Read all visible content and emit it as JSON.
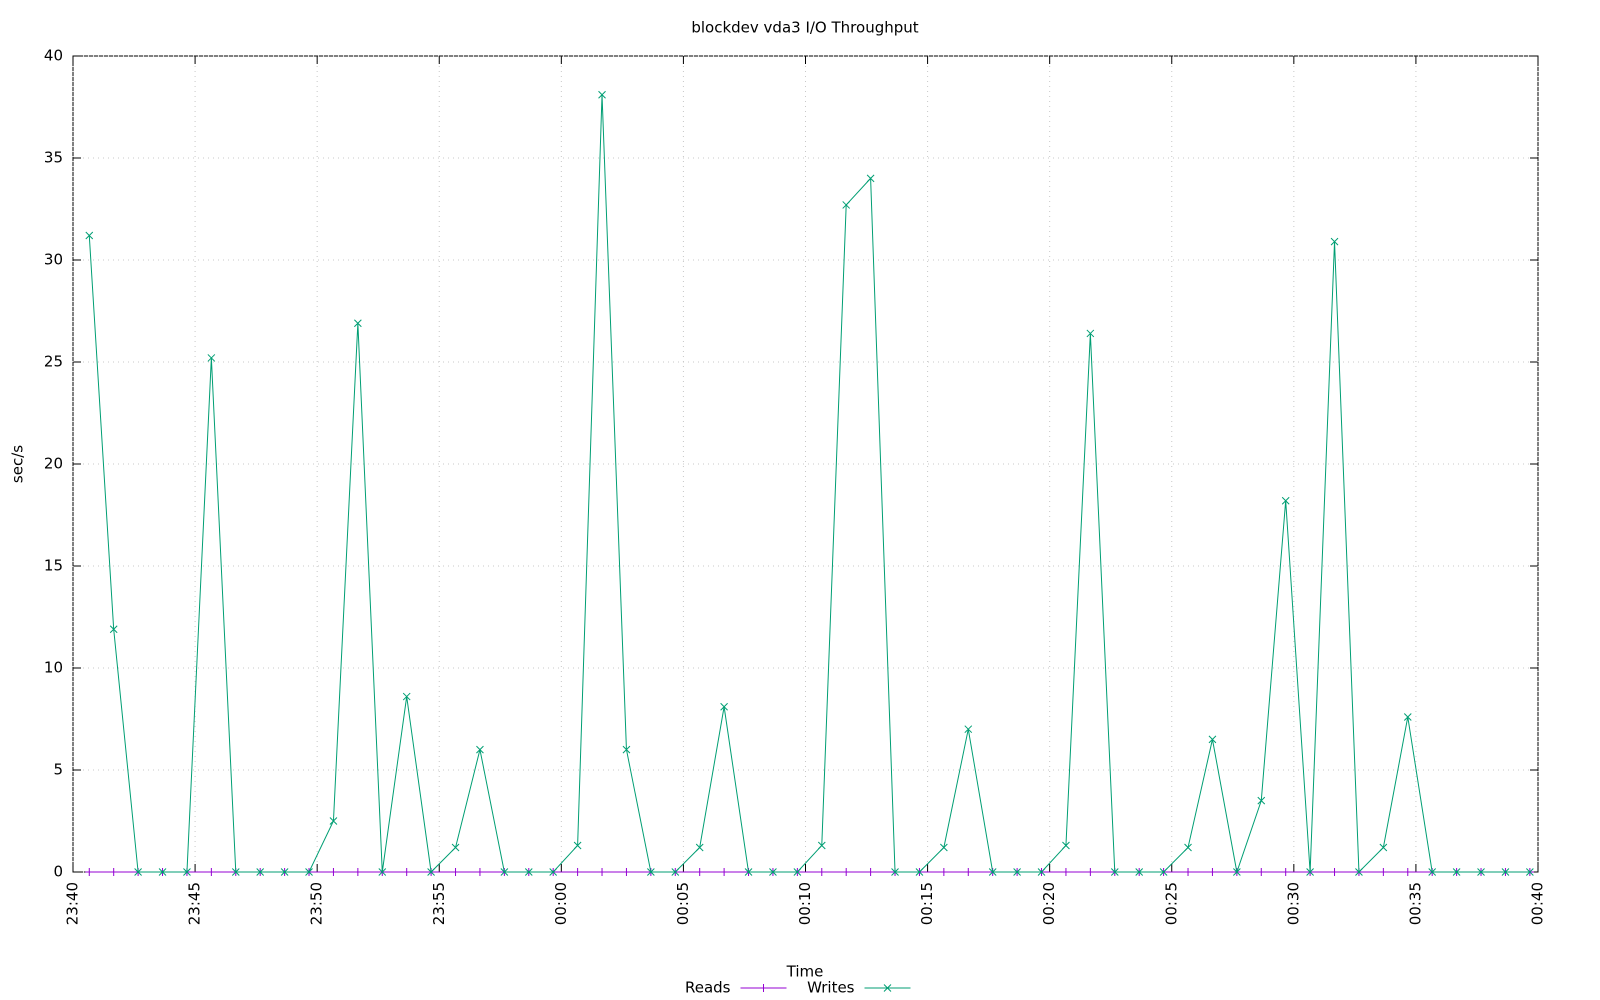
{
  "chart_data": {
    "type": "line",
    "title": "blockdev vda3 I/O Throughput",
    "x_label": "Time",
    "y_label": "sec/s",
    "x": [
      "23:40:40",
      "23:41:40",
      "23:42:40",
      "23:43:40",
      "23:44:40",
      "23:45:40",
      "23:46:40",
      "23:47:40",
      "23:48:40",
      "23:49:40",
      "23:50:40",
      "23:51:40",
      "23:52:40",
      "23:53:40",
      "23:54:40",
      "23:55:40",
      "23:56:40",
      "23:57:40",
      "23:58:40",
      "23:59:40",
      "00:00:40",
      "00:01:40",
      "00:02:40",
      "00:03:40",
      "00:04:40",
      "00:05:40",
      "00:06:40",
      "00:07:40",
      "00:08:40",
      "00:09:40",
      "00:10:40",
      "00:11:40",
      "00:12:40",
      "00:13:40",
      "00:14:40",
      "00:15:40",
      "00:16:40",
      "00:17:40",
      "00:18:40",
      "00:19:40",
      "00:20:40",
      "00:21:40",
      "00:22:40",
      "00:23:40",
      "00:24:40",
      "00:25:40",
      "00:26:40",
      "00:27:40",
      "00:28:40",
      "00:29:40",
      "00:30:40",
      "00:31:40",
      "00:32:40",
      "00:33:40",
      "00:34:40",
      "00:35:40",
      "00:36:40",
      "00:37:40",
      "00:38:40",
      "00:39:40"
    ],
    "series": [
      {
        "name": "Reads",
        "color": "#9400d3",
        "marker": "+",
        "values": [
          0,
          0,
          0,
          0,
          0,
          0,
          0,
          0,
          0,
          0,
          0,
          0,
          0,
          0,
          0,
          0,
          0,
          0,
          0,
          0,
          0,
          0,
          0,
          0,
          0,
          0,
          0,
          0,
          0,
          0,
          0,
          0,
          0,
          0,
          0,
          0,
          0,
          0,
          0,
          0,
          0,
          0,
          0,
          0,
          0,
          0,
          0,
          0,
          0,
          0,
          0,
          0,
          0,
          0,
          0,
          0,
          0,
          0,
          0,
          0
        ]
      },
      {
        "name": "Writes",
        "color": "#009e73",
        "marker": "x",
        "values": [
          31.2,
          11.9,
          0,
          0,
          0,
          25.2,
          0,
          0,
          0,
          0,
          2.5,
          26.9,
          0,
          8.6,
          0,
          1.2,
          6.0,
          0,
          0,
          0,
          1.3,
          38.1,
          6.0,
          0,
          0,
          1.2,
          8.1,
          0,
          0,
          0,
          1.3,
          32.7,
          34.0,
          0,
          0,
          1.2,
          7.0,
          0,
          0,
          0,
          1.3,
          26.4,
          0,
          0,
          0,
          1.2,
          6.5,
          0,
          3.5,
          18.2,
          0,
          30.9,
          0,
          1.2,
          7.6,
          0,
          0,
          0,
          0,
          0
        ]
      }
    ],
    "xlim": [
      "23:40",
      "00:40"
    ],
    "xticks": [
      "23:40",
      "23:45",
      "23:50",
      "23:55",
      "00:00",
      "00:05",
      "00:10",
      "00:15",
      "00:20",
      "00:25",
      "00:30",
      "00:35",
      "00:40"
    ],
    "ylim": [
      0,
      40
    ],
    "yticks": [
      0,
      5,
      10,
      15,
      20,
      25,
      30,
      35,
      40
    ],
    "grid": true,
    "legend": "bottom"
  }
}
